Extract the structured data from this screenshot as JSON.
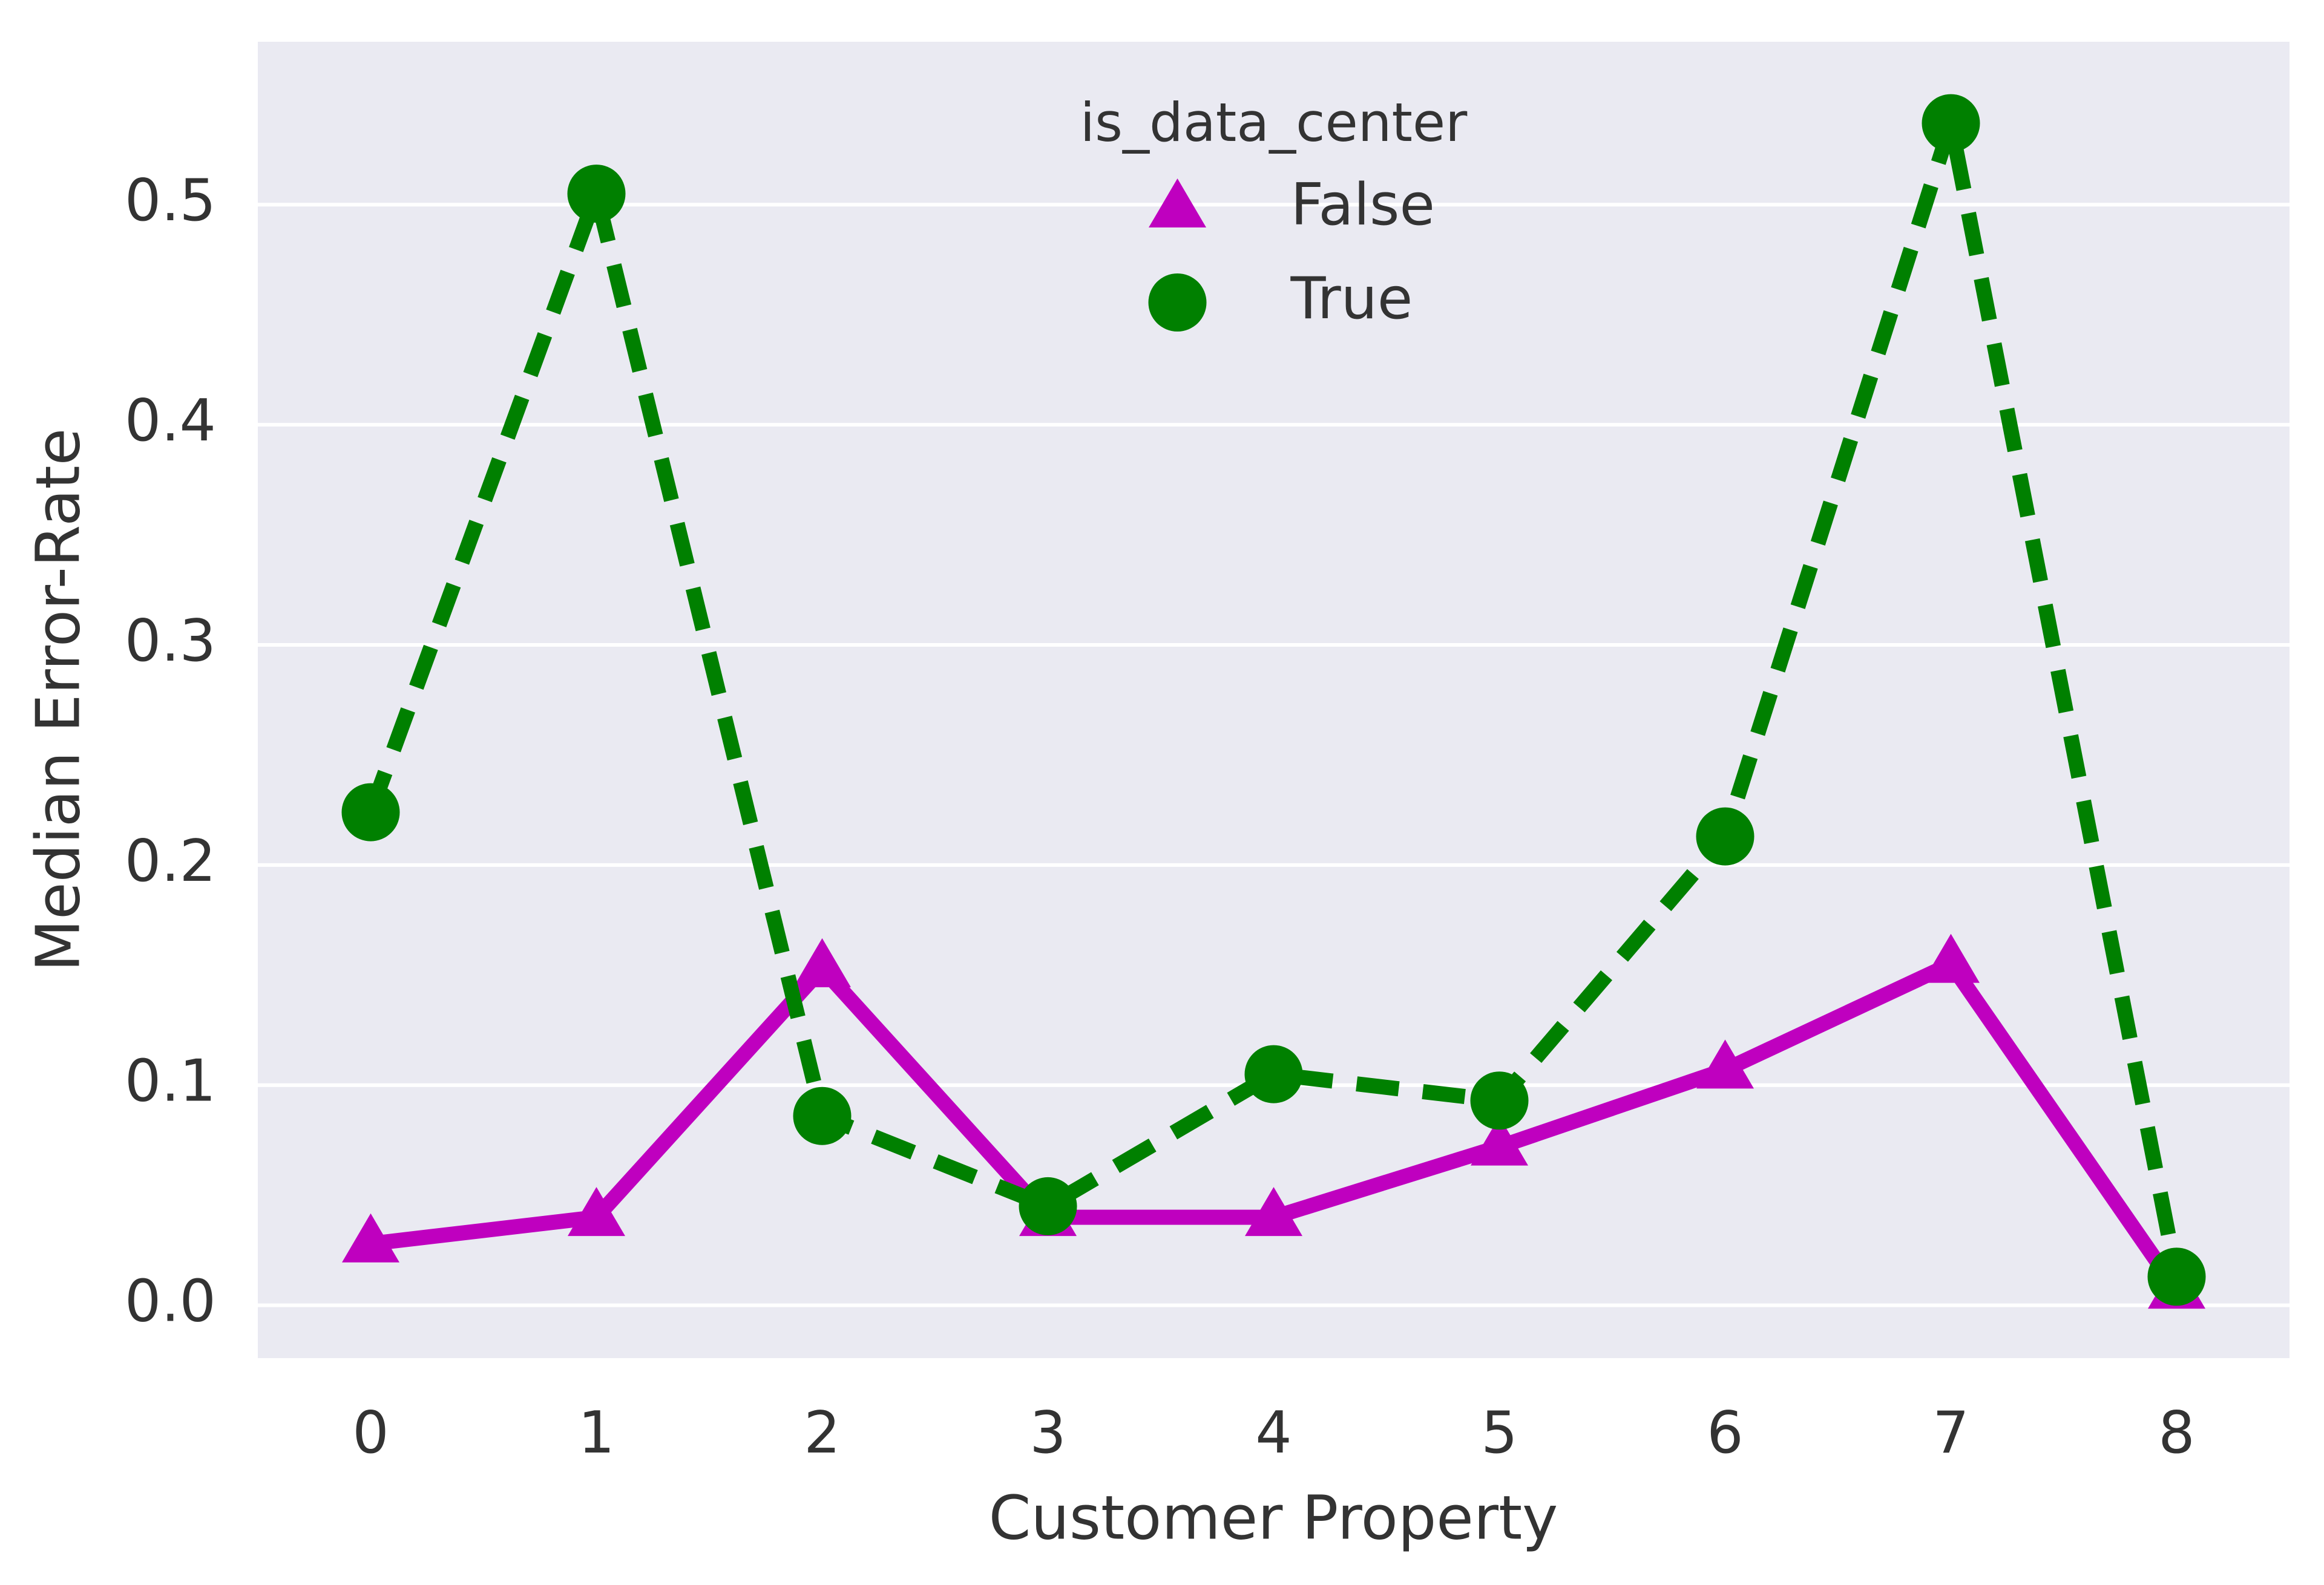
{
  "chart_data": {
    "type": "line",
    "x_label": "Customer Property",
    "y_label": "Median Error-Rate",
    "categories": [
      "0",
      "1",
      "2",
      "3",
      "4",
      "5",
      "6",
      "7",
      "8"
    ],
    "legend_title": "is_data_center",
    "legend_position": "upper center",
    "series": [
      {
        "name": "False",
        "color": "#bf00bf",
        "marker": "triangle",
        "linestyle": "solid",
        "values": [
          0.028,
          0.04,
          0.153,
          0.04,
          0.04,
          0.072,
          0.107,
          0.155,
          0.007
        ]
      },
      {
        "name": "True",
        "color": "#008000",
        "marker": "circle",
        "linestyle": "dashed",
        "values": [
          0.224,
          0.505,
          0.086,
          0.045,
          0.105,
          0.093,
          0.213,
          0.537,
          0.013
        ]
      }
    ],
    "ylim": [
      -0.024,
      0.574
    ],
    "yticks": [
      {
        "value": 0,
        "label": "0.0"
      },
      0.1,
      0.2,
      0.3,
      0.4,
      0.5
    ],
    "grid": true,
    "background": "#eaeaf2"
  }
}
